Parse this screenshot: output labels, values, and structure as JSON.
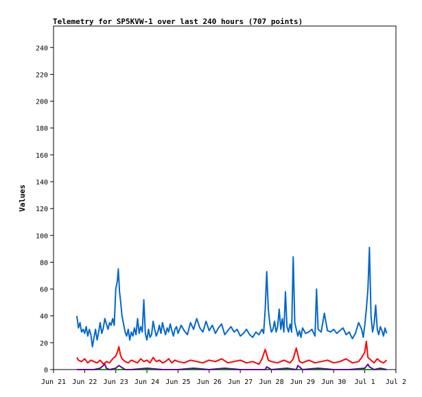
{
  "chart_data": {
    "type": "line",
    "title": "Telemetry for SP5KVW-1 over last 240 hours (707 points)",
    "ylabel": "Values",
    "xlabel": "",
    "ylim": [
      0,
      256
    ],
    "xlim": [
      0,
      11
    ],
    "y_ticks": [
      0,
      20,
      40,
      60,
      80,
      100,
      120,
      140,
      160,
      180,
      200,
      220,
      240
    ],
    "x_ticks": [
      {
        "x": 0,
        "label": "Jun 21"
      },
      {
        "x": 1,
        "label": "Jun 22"
      },
      {
        "x": 2,
        "label": "Jun 23"
      },
      {
        "x": 3,
        "label": "Jun 24"
      },
      {
        "x": 4,
        "label": "Jun 25"
      },
      {
        "x": 5,
        "label": "Jun 26"
      },
      {
        "x": 6,
        "label": "Jun 27"
      },
      {
        "x": 7,
        "label": "Jun 28"
      },
      {
        "x": 8,
        "label": "Jun 29"
      },
      {
        "x": 9,
        "label": "Jun 30"
      },
      {
        "x": 10,
        "label": "Jul 1"
      },
      {
        "x": 11,
        "label": "Jul 2"
      }
    ],
    "grid": false,
    "legend": "none",
    "series": [
      {
        "color": "#0066cc",
        "x": [
          0.75,
          0.8,
          0.85,
          0.9,
          0.95,
          1.0,
          1.05,
          1.1,
          1.15,
          1.2,
          1.25,
          1.3,
          1.35,
          1.4,
          1.45,
          1.5,
          1.55,
          1.6,
          1.65,
          1.7,
          1.75,
          1.8,
          1.85,
          1.9,
          1.95,
          2.0,
          2.05,
          2.08,
          2.12,
          2.15,
          2.2,
          2.25,
          2.3,
          2.35,
          2.4,
          2.45,
          2.5,
          2.55,
          2.6,
          2.65,
          2.7,
          2.75,
          2.8,
          2.85,
          2.9,
          2.95,
          3.0,
          3.05,
          3.1,
          3.15,
          3.2,
          3.25,
          3.3,
          3.35,
          3.4,
          3.45,
          3.5,
          3.55,
          3.6,
          3.65,
          3.7,
          3.75,
          3.8,
          3.85,
          3.9,
          3.95,
          4.0,
          4.1,
          4.2,
          4.3,
          4.4,
          4.5,
          4.6,
          4.7,
          4.8,
          4.9,
          5.0,
          5.1,
          5.2,
          5.3,
          5.4,
          5.5,
          5.6,
          5.7,
          5.8,
          5.9,
          6.0,
          6.1,
          6.2,
          6.3,
          6.4,
          6.5,
          6.6,
          6.7,
          6.75,
          6.8,
          6.85,
          6.9,
          6.95,
          7.0,
          7.05,
          7.1,
          7.15,
          7.2,
          7.25,
          7.3,
          7.35,
          7.4,
          7.45,
          7.5,
          7.55,
          7.6,
          7.65,
          7.7,
          7.75,
          7.8,
          7.85,
          7.9,
          7.95,
          8.0,
          8.1,
          8.2,
          8.3,
          8.4,
          8.45,
          8.5,
          8.6,
          8.7,
          8.8,
          8.9,
          9.0,
          9.1,
          9.2,
          9.3,
          9.4,
          9.5,
          9.6,
          9.7,
          9.8,
          9.9,
          9.95,
          10.0,
          10.05,
          10.1,
          10.15,
          10.2,
          10.25,
          10.3,
          10.35,
          10.4,
          10.45,
          10.5,
          10.55,
          10.6,
          10.65,
          10.7
        ],
        "y": [
          40,
          31,
          35,
          28,
          30,
          27,
          32,
          25,
          30,
          26,
          17,
          24,
          30,
          22,
          28,
          35,
          27,
          31,
          38,
          34,
          30,
          35,
          33,
          38,
          33,
          60,
          66,
          75,
          58,
          52,
          40,
          34,
          28,
          25,
          30,
          22,
          28,
          25,
          31,
          26,
          38,
          27,
          32,
          28,
          52,
          27,
          22,
          30,
          24,
          26,
          36,
          30,
          25,
          28,
          33,
          27,
          35,
          30,
          26,
          31,
          28,
          34,
          29,
          25,
          30,
          32,
          27,
          33,
          29,
          26,
          35,
          30,
          38,
          31,
          28,
          36,
          29,
          33,
          27,
          31,
          34,
          26,
          29,
          32,
          28,
          30,
          25,
          27,
          30,
          26,
          24,
          28,
          26,
          30,
          27,
          45,
          73,
          45,
          34,
          28,
          30,
          36,
          28,
          32,
          45,
          30,
          38,
          28,
          58,
          32,
          28,
          34,
          28,
          84,
          35,
          30,
          25,
          29,
          24,
          31,
          27,
          28,
          30,
          25,
          60,
          30,
          28,
          42,
          29,
          28,
          30,
          27,
          29,
          31,
          26,
          28,
          23,
          27,
          35,
          30,
          24,
          33,
          45,
          60,
          91,
          40,
          28,
          34,
          48,
          30,
          26,
          32,
          29,
          25,
          31,
          27
        ]
      },
      {
        "color": "#ff0000",
        "x": [
          0.75,
          0.8,
          0.9,
          1.0,
          1.1,
          1.2,
          1.3,
          1.4,
          1.5,
          1.6,
          1.7,
          1.8,
          1.9,
          2.0,
          2.05,
          2.1,
          2.15,
          2.2,
          2.3,
          2.4,
          2.5,
          2.6,
          2.7,
          2.8,
          2.9,
          3.0,
          3.1,
          3.2,
          3.3,
          3.4,
          3.5,
          3.6,
          3.7,
          3.8,
          3.9,
          4.0,
          4.2,
          4.4,
          4.6,
          4.8,
          5.0,
          5.2,
          5.4,
          5.6,
          5.8,
          6.0,
          6.2,
          6.4,
          6.6,
          6.7,
          6.8,
          6.9,
          7.0,
          7.2,
          7.4,
          7.6,
          7.7,
          7.8,
          7.9,
          8.0,
          8.2,
          8.4,
          8.6,
          8.8,
          9.0,
          9.2,
          9.4,
          9.6,
          9.8,
          9.9,
          10.0,
          10.05,
          10.1,
          10.2,
          10.3,
          10.4,
          10.5,
          10.6,
          10.7
        ],
        "y": [
          9,
          7,
          6,
          8,
          5,
          7,
          6,
          5,
          7,
          4,
          6,
          5,
          8,
          10,
          13,
          17,
          11,
          8,
          6,
          5,
          7,
          6,
          5,
          8,
          6,
          7,
          5,
          9,
          6,
          7,
          5,
          6,
          8,
          5,
          7,
          6,
          5,
          7,
          6,
          5,
          7,
          6,
          8,
          5,
          6,
          7,
          5,
          6,
          4,
          8,
          15,
          7,
          6,
          5,
          7,
          5,
          8,
          16,
          6,
          5,
          7,
          5,
          6,
          7,
          5,
          6,
          8,
          5,
          6,
          9,
          13,
          21,
          9,
          7,
          5,
          8,
          6,
          5,
          7
        ]
      },
      {
        "color": "#660099",
        "x": [
          0.75,
          1.0,
          1.3,
          1.5,
          1.65,
          1.7,
          1.8,
          2.0,
          2.1,
          2.3,
          2.5,
          3.0,
          3.5,
          4.0,
          4.5,
          5.0,
          5.5,
          6.0,
          6.5,
          6.8,
          6.85,
          7.0,
          7.5,
          7.8,
          7.85,
          8.0,
          8.5,
          9.0,
          9.5,
          10.0,
          10.1,
          10.15,
          10.3,
          10.5,
          10.7
        ],
        "y": [
          0,
          0,
          0,
          1,
          4,
          1,
          0,
          1,
          3,
          0,
          0,
          1,
          0,
          0,
          1,
          0,
          1,
          0,
          0,
          0,
          2,
          0,
          1,
          0,
          3,
          0,
          1,
          0,
          0,
          1,
          4,
          2,
          0,
          1,
          0
        ]
      },
      {
        "color": "#009900",
        "x": [
          0.75,
          10.7
        ],
        "y": [
          0,
          0
        ]
      }
    ]
  }
}
